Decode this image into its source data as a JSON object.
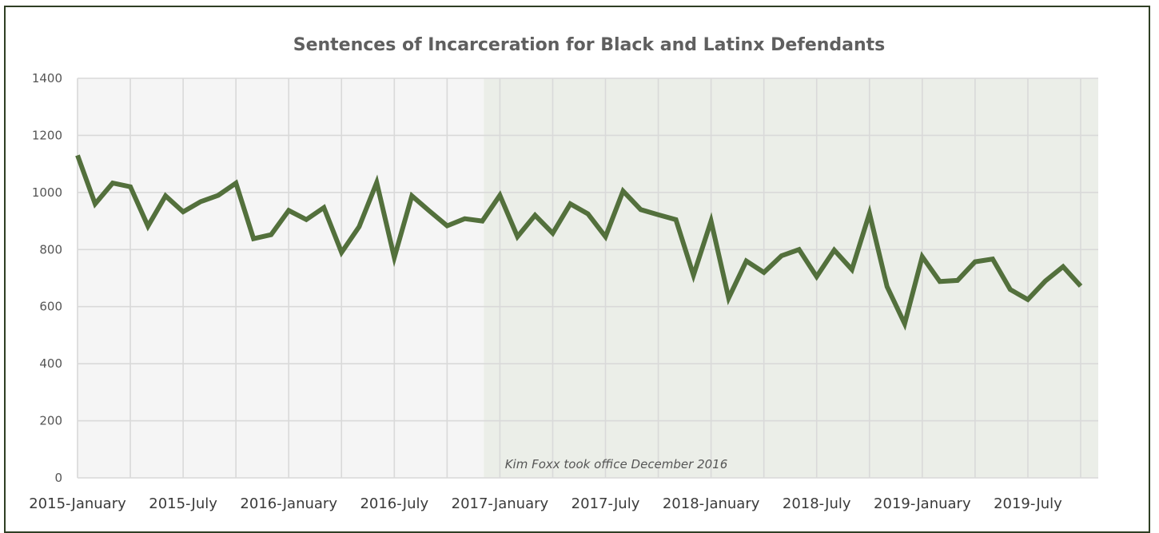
{
  "chart_data": {
    "type": "line",
    "title": "Sentences of Incarceration for Black and Latinx Defendants",
    "xlabel": "",
    "ylabel": "",
    "ylim": [
      0,
      1400
    ],
    "yticks": [
      0,
      200,
      400,
      600,
      800,
      1000,
      1200,
      1400
    ],
    "x_tick_labels": [
      "2015-January",
      "2015-July",
      "2016-January",
      "2016-July",
      "2017-January",
      "2017-July",
      "2018-January",
      "2018-July",
      "2019-January",
      "2019-July"
    ],
    "x_start": "2015-01",
    "x_end": "2019-10",
    "grid": true,
    "legend": "none",
    "line_color": "#53703c",
    "highlight_region": {
      "start": "2016-12",
      "end": "2019-10",
      "color": "#ebeee8",
      "label": "Kim Foxx took office December 2016"
    },
    "series": [
      {
        "values": [
          1130,
          960,
          1033,
          1020,
          882,
          988,
          932,
          968,
          990,
          1033,
          838,
          852,
          937,
          905,
          947,
          790,
          880,
          1035,
          772,
          988,
          935,
          883,
          908,
          900,
          990,
          845,
          920,
          857,
          960,
          925,
          845,
          1005,
          940,
          922,
          905,
          710,
          900,
          630,
          760,
          720,
          778,
          800,
          705,
          798,
          730,
          927,
          670,
          540,
          775,
          688,
          692,
          757,
          767,
          660,
          625,
          690,
          740,
          672
        ]
      }
    ]
  }
}
